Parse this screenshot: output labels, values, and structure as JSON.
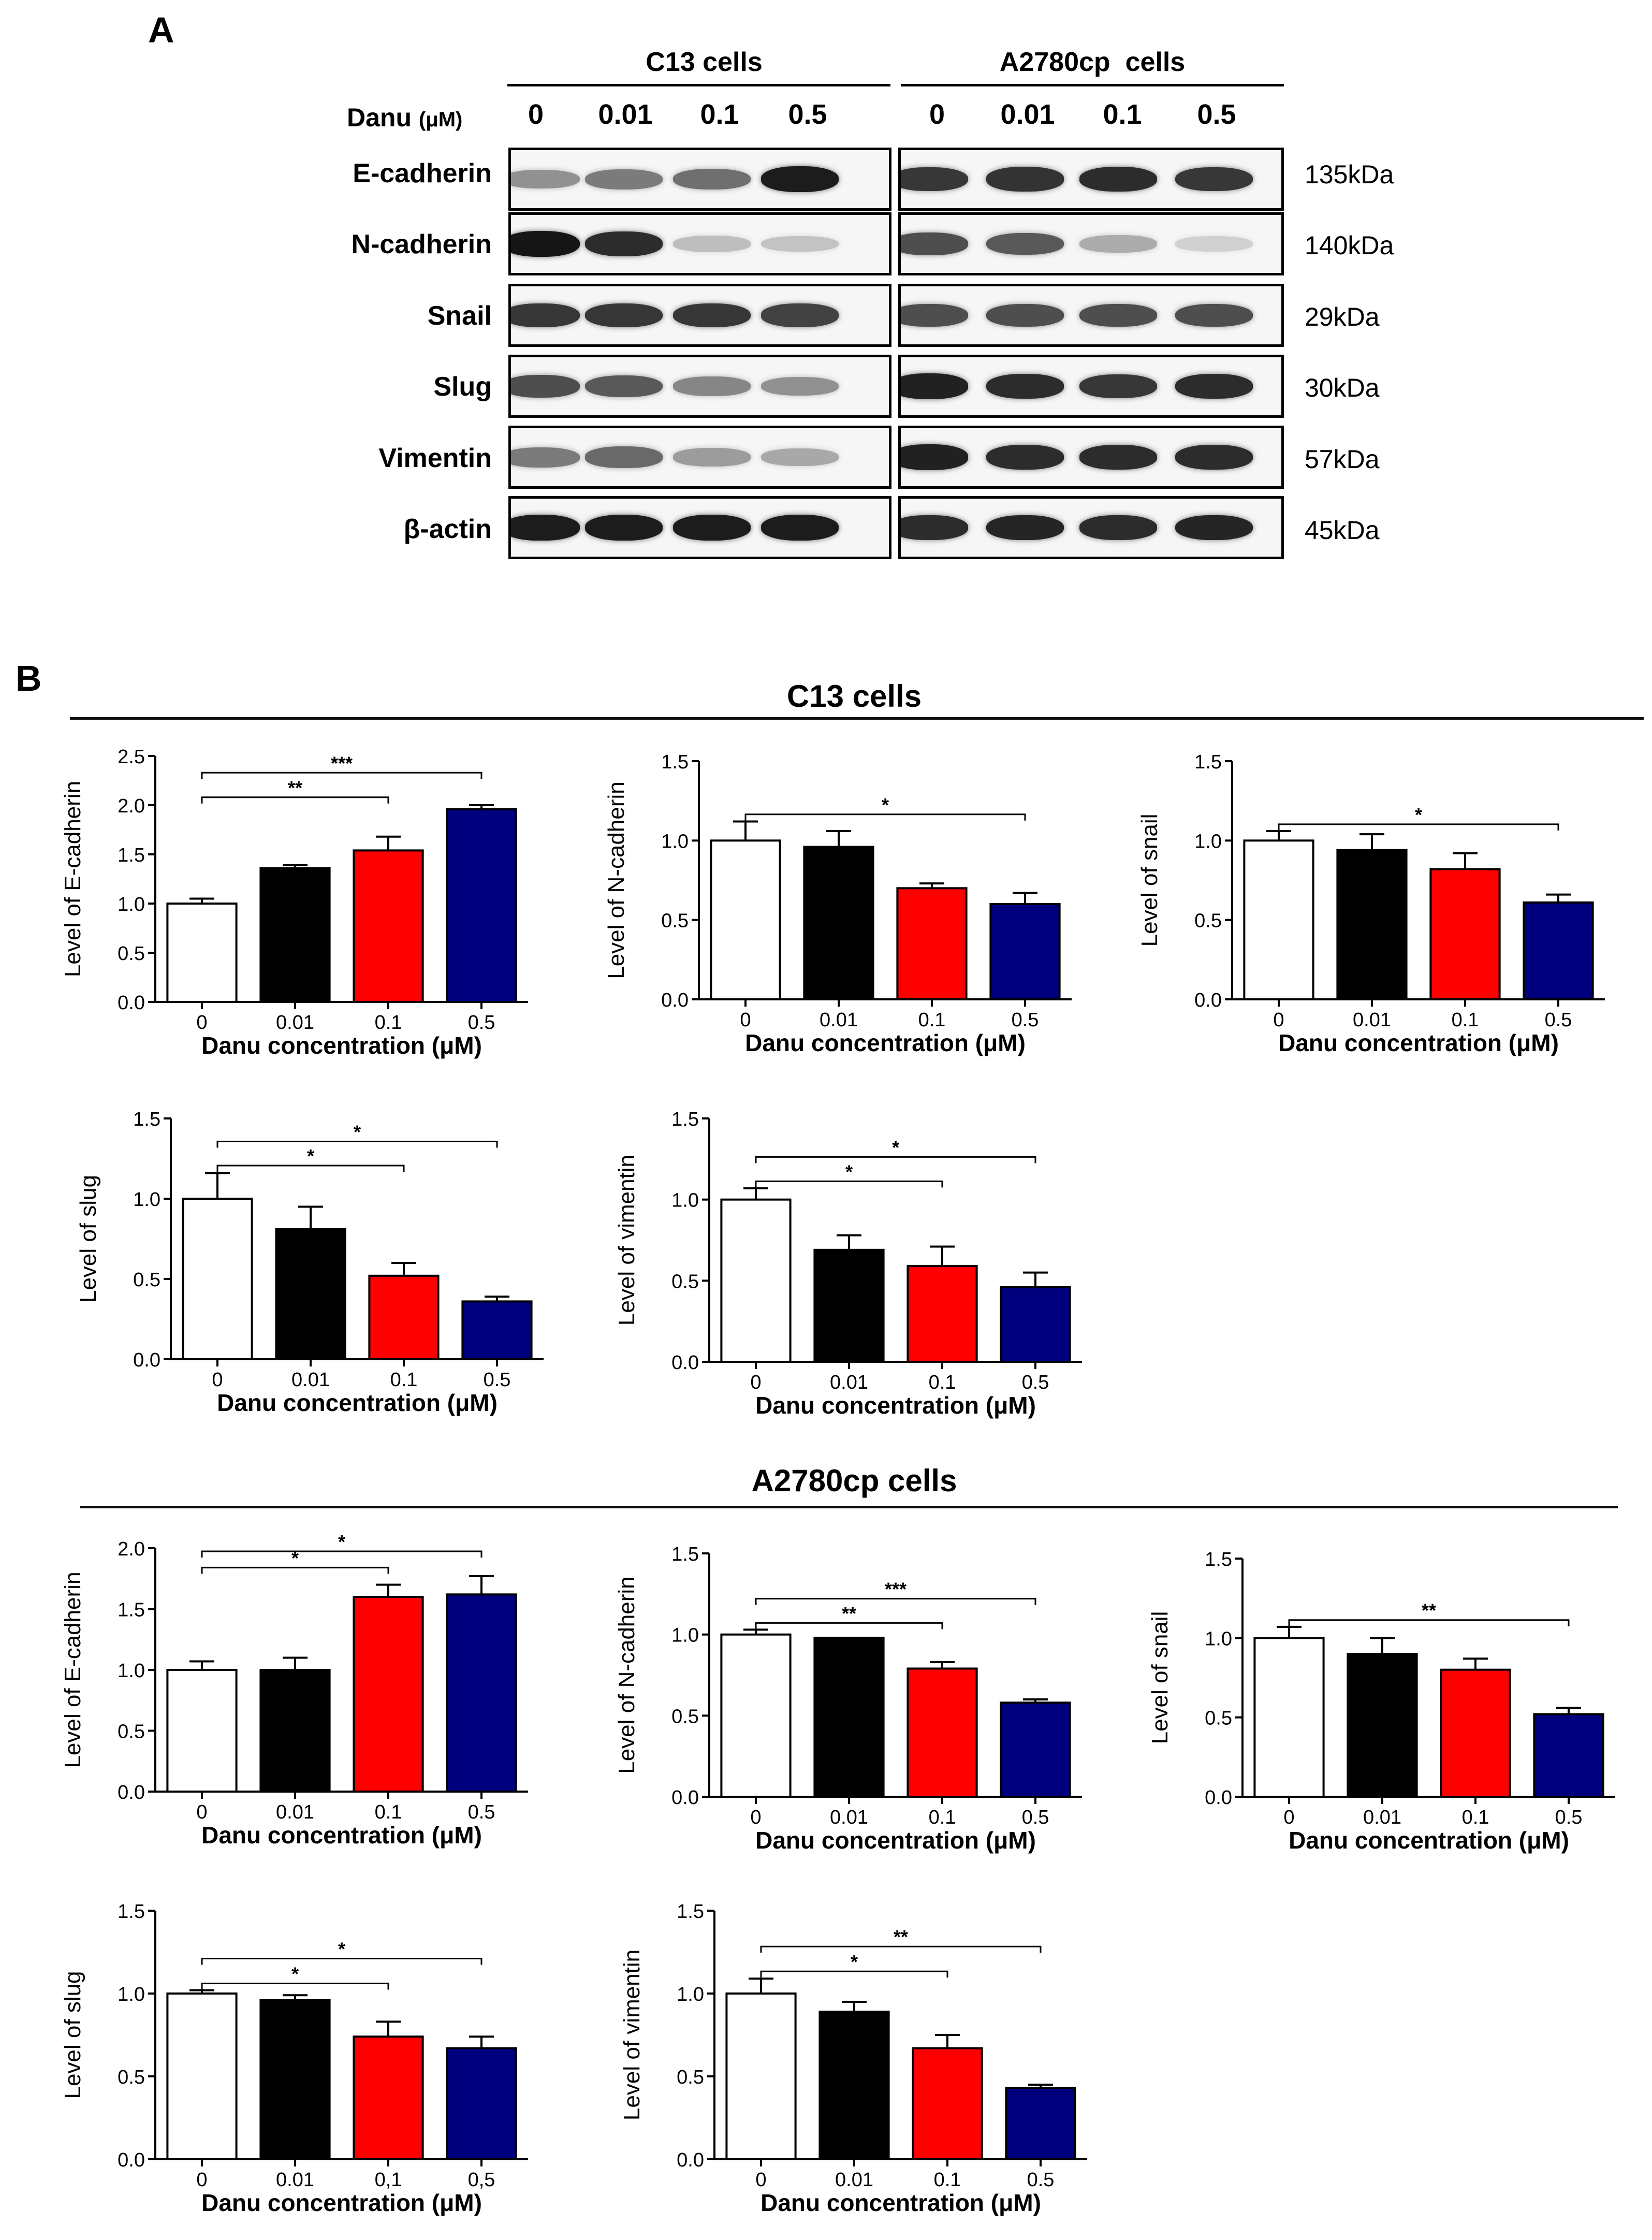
{
  "panel_a": {
    "label": "A",
    "danu_label": "Danu",
    "danu_unit": "(μM)",
    "concentrations": [
      "0",
      "0.01",
      "0.1",
      "0.5"
    ],
    "groups": [
      {
        "name": "C13 cells",
        "intensities": [
          [
            0.4,
            0.5,
            0.55,
            0.92
          ],
          [
            0.95,
            0.85,
            0.2,
            0.18
          ],
          [
            0.8,
            0.8,
            0.8,
            0.75
          ],
          [
            0.7,
            0.65,
            0.45,
            0.4
          ],
          [
            0.5,
            0.58,
            0.35,
            0.3
          ],
          [
            0.92,
            0.92,
            0.92,
            0.92
          ]
        ]
      },
      {
        "name": "A2780cp  cells",
        "intensities": [
          [
            0.8,
            0.82,
            0.85,
            0.8
          ],
          [
            0.7,
            0.65,
            0.28,
            0.12
          ],
          [
            0.7,
            0.7,
            0.7,
            0.7
          ],
          [
            0.9,
            0.85,
            0.8,
            0.85
          ],
          [
            0.9,
            0.85,
            0.85,
            0.85
          ],
          [
            0.85,
            0.88,
            0.85,
            0.88
          ]
        ]
      }
    ],
    "proteins": [
      {
        "name": "E-cadherin",
        "kda": "135kDa"
      },
      {
        "name": "N-cadherin",
        "kda": "140kDa"
      },
      {
        "name": "Snail",
        "kda": "29kDa"
      },
      {
        "name": "Slug",
        "kda": "30kDa"
      },
      {
        "name": "Vimentin",
        "kda": "57kDa"
      },
      {
        "name": "β-actin",
        "kda": "45kDa"
      }
    ]
  },
  "panel_b": {
    "label": "B",
    "sections": [
      {
        "title": "C13 cells"
      },
      {
        "title": "A2780cp cells"
      }
    ]
  },
  "colors": [
    "#ffffff",
    "#000000",
    "#ff0000",
    "#00007f"
  ],
  "chart_data": [
    {
      "id": "c13-ecad",
      "type": "bar",
      "categories": [
        "0",
        "0.01",
        "0.1",
        "0.5"
      ],
      "values": [
        1.0,
        1.36,
        1.54,
        1.96
      ],
      "errors": [
        0.05,
        0.03,
        0.14,
        0.04
      ],
      "ylabel": "Level of E-cadherin",
      "xlabel": "Danu concentration (μM)",
      "ylim": [
        0,
        2.5
      ],
      "ticks": [
        "0.0",
        "0.5",
        "1.0",
        "1.5",
        "2.0",
        "2.5"
      ],
      "sig": [
        {
          "from": 0,
          "to": 2,
          "label": "**"
        },
        {
          "from": 0,
          "to": 3,
          "label": "***"
        }
      ]
    },
    {
      "id": "c13-ncad",
      "type": "bar",
      "categories": [
        "0",
        "0.01",
        "0.1",
        "0.5"
      ],
      "values": [
        1.0,
        0.96,
        0.7,
        0.6
      ],
      "errors": [
        0.12,
        0.1,
        0.03,
        0.07
      ],
      "ylabel": "Level of N-cadherin",
      "xlabel": "Danu concentration (μM)",
      "ylim": [
        0,
        1.5
      ],
      "ticks": [
        "0.0",
        "0.5",
        "1.0",
        "1.5"
      ],
      "sig": [
        {
          "from": 0,
          "to": 3,
          "label": "*"
        }
      ]
    },
    {
      "id": "c13-snail",
      "type": "bar",
      "categories": [
        "0",
        "0.01",
        "0.1",
        "0.5"
      ],
      "values": [
        1.0,
        0.94,
        0.82,
        0.61
      ],
      "errors": [
        0.06,
        0.1,
        0.1,
        0.05
      ],
      "ylabel": "Level of snail",
      "xlabel": "Danu concentration (μM)",
      "ylim": [
        0,
        1.5
      ],
      "ticks": [
        "0.0",
        "0.5",
        "1.0",
        "1.5"
      ],
      "sig": [
        {
          "from": 0,
          "to": 3,
          "label": "*"
        }
      ]
    },
    {
      "id": "c13-slug",
      "type": "bar",
      "categories": [
        "0",
        "0.01",
        "0.1",
        "0.5"
      ],
      "values": [
        1.0,
        0.81,
        0.52,
        0.36
      ],
      "errors": [
        0.16,
        0.14,
        0.08,
        0.03
      ],
      "ylabel": "Level of slug",
      "xlabel": "Danu concentration (μM)",
      "ylim": [
        0,
        1.5
      ],
      "ticks": [
        "0.0",
        "0.5",
        "1.0",
        "1.5"
      ],
      "sig": [
        {
          "from": 0,
          "to": 2,
          "label": "*"
        },
        {
          "from": 0,
          "to": 3,
          "label": "*"
        }
      ]
    },
    {
      "id": "c13-vim",
      "type": "bar",
      "categories": [
        "0",
        "0.01",
        "0.1",
        "0.5"
      ],
      "values": [
        1.0,
        0.69,
        0.59,
        0.46
      ],
      "errors": [
        0.07,
        0.09,
        0.12,
        0.09
      ],
      "ylabel": "Level of vimentin",
      "xlabel": "Danu concentration (μM)",
      "ylim": [
        0,
        1.5
      ],
      "ticks": [
        "0.0",
        "0.5",
        "1.0",
        "1.5"
      ],
      "sig": [
        {
          "from": 0,
          "to": 2,
          "label": "*"
        },
        {
          "from": 0,
          "to": 3,
          "label": "*"
        }
      ]
    },
    {
      "id": "a27-ecad",
      "type": "bar",
      "categories": [
        "0",
        "0.01",
        "0.1",
        "0.5"
      ],
      "values": [
        1.0,
        1.0,
        1.6,
        1.62
      ],
      "errors": [
        0.07,
        0.1,
        0.1,
        0.15
      ],
      "ylabel": "Level of E-cadherin",
      "xlabel": "Danu concentration (μM)",
      "ylim": [
        0,
        2.0
      ],
      "ticks": [
        "0.0",
        "0.5",
        "1.0",
        "1.5",
        "2.0"
      ],
      "sig": [
        {
          "from": 0,
          "to": 2,
          "label": "*"
        },
        {
          "from": 0,
          "to": 3,
          "label": "*"
        }
      ]
    },
    {
      "id": "a27-ncad",
      "type": "bar",
      "categories": [
        "0",
        "0.01",
        "0.1",
        "0.5"
      ],
      "values": [
        1.0,
        0.98,
        0.79,
        0.58
      ],
      "errors": [
        0.03,
        0.0,
        0.04,
        0.02
      ],
      "ylabel": "Level of N-cadherin",
      "xlabel": "Danu concentration (μM)",
      "ylim": [
        0,
        1.5
      ],
      "ticks": [
        "0.0",
        "0.5",
        "1.0",
        "1.5"
      ],
      "sig": [
        {
          "from": 0,
          "to": 2,
          "label": "**"
        },
        {
          "from": 0,
          "to": 3,
          "label": "***"
        }
      ]
    },
    {
      "id": "a27-snail",
      "type": "bar",
      "categories": [
        "0",
        "0.01",
        "0.1",
        "0.5"
      ],
      "values": [
        1.0,
        0.9,
        0.8,
        0.52
      ],
      "errors": [
        0.07,
        0.1,
        0.07,
        0.04
      ],
      "ylabel": "Level of snail",
      "xlabel": "Danu concentration (μM)",
      "ylim": [
        0,
        1.5
      ],
      "ticks": [
        "0.0",
        "0.5",
        "1.0",
        "1.5"
      ],
      "sig": [
        {
          "from": 0,
          "to": 3,
          "label": "**"
        }
      ]
    },
    {
      "id": "a27-slug",
      "type": "bar",
      "categories": [
        "0",
        "0.01",
        "0,1",
        "0,5"
      ],
      "values": [
        1.0,
        0.96,
        0.74,
        0.67
      ],
      "errors": [
        0.02,
        0.03,
        0.09,
        0.07
      ],
      "ylabel": "Level of slug",
      "xlabel": "Danu concentration (μM)",
      "ylim": [
        0,
        1.5
      ],
      "ticks": [
        "0.0",
        "0.5",
        "1.0",
        "1.5"
      ],
      "sig": [
        {
          "from": 0,
          "to": 2,
          "label": "*"
        },
        {
          "from": 0,
          "to": 3,
          "label": "*"
        }
      ]
    },
    {
      "id": "a27-vim",
      "type": "bar",
      "categories": [
        "0",
        "0.01",
        "0.1",
        "0.5"
      ],
      "values": [
        1.0,
        0.89,
        0.67,
        0.43
      ],
      "errors": [
        0.09,
        0.06,
        0.08,
        0.02
      ],
      "ylabel": "Level of vimentin",
      "xlabel": "Danu concentration (μM)",
      "ylim": [
        0,
        1.5
      ],
      "ticks": [
        "0.0",
        "0.5",
        "1.0",
        "1.5"
      ],
      "sig": [
        {
          "from": 0,
          "to": 2,
          "label": "*"
        },
        {
          "from": 0,
          "to": 3,
          "label": "**"
        }
      ]
    }
  ]
}
